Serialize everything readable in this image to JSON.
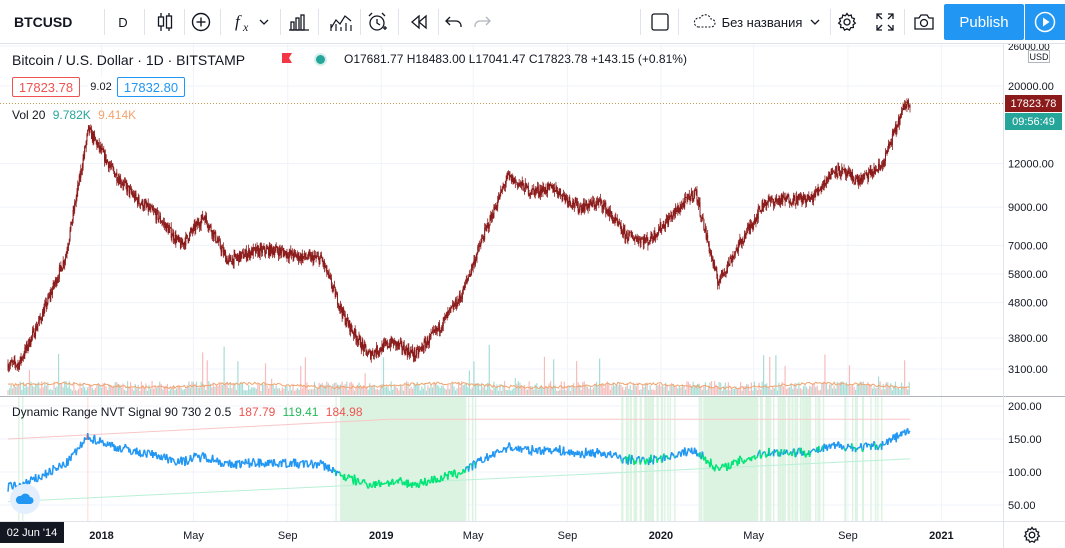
{
  "toolbar": {
    "symbol": "BTCUSD",
    "interval": "D",
    "chart_name": "Без названия",
    "publish_label": "Publish"
  },
  "legend": {
    "title": "Bitcoin / U.S. Dollar · 1D · BITSTAMP",
    "ohlc": "O17681.77 H18483.00 L17041.47 C17823.78 +143.15 (+0.81%)",
    "bid": "17823.78",
    "spread": "9.02",
    "ask": "17832.80",
    "volume": {
      "label": "Vol 20",
      "value1": "9.782K",
      "value2": "9.414K"
    },
    "nvt": {
      "label": "Dynamic Range NVT Signal 90 730 2 0.5",
      "value1": "187.79",
      "value2": "119.41",
      "value3": "184.98"
    }
  },
  "price_axis": {
    "currency": "USD",
    "current_price": "17823.78",
    "countdown": "09:56:49",
    "ticks": [
      "26000.00",
      "20000.00",
      "17823.78",
      "12000.00",
      "9000.00",
      "7000.00",
      "5800.00",
      "4800.00",
      "3800.00",
      "3100.00"
    ]
  },
  "nvt_axis": {
    "ticks": [
      "200.00",
      "150.00",
      "100.00",
      "50.00"
    ]
  },
  "time_axis": {
    "cursor_date": "02 Jun '14",
    "labels": [
      "2018",
      "May",
      "Sep",
      "2019",
      "May",
      "Sep",
      "2020",
      "May",
      "Sep",
      "2021"
    ]
  },
  "colors": {
    "up": "#26a69a",
    "down": "#ef5350",
    "candle": "#8b1a1a",
    "accent": "#2196f3",
    "nvt_blue": "#2196f3",
    "nvt_red": "#ef5350",
    "nvt_green": "#00e676",
    "volume_ma": "#f0a46e"
  },
  "icons": [
    "candle-style-icon",
    "add-indicator-icon",
    "fx-icon",
    "bar-chart-icon",
    "alert-icon",
    "replay-icon",
    "undo-icon",
    "redo-icon",
    "fullscreen-icon",
    "camera-icon",
    "settings-icon",
    "play-icon"
  ],
  "chart_data": {
    "type": "line",
    "y_scale": "log",
    "x": [
      "2017-09",
      "2017-10",
      "2017-11",
      "2017-12",
      "2018-01",
      "2018-02",
      "2018-03",
      "2018-04",
      "2018-05",
      "2018-06",
      "2018-07",
      "2018-08",
      "2018-09",
      "2018-10",
      "2018-11",
      "2018-12",
      "2019-01",
      "2019-02",
      "2019-03",
      "2019-04",
      "2019-05",
      "2019-06",
      "2019-07",
      "2019-08",
      "2019-09",
      "2019-10",
      "2019-11",
      "2019-12",
      "2020-01",
      "2020-02",
      "2020-03",
      "2020-04",
      "2020-05",
      "2020-06",
      "2020-07",
      "2020-08",
      "2020-09",
      "2020-10",
      "2020-11"
    ],
    "series": [
      {
        "values": [
          3200,
          4400,
          6500,
          15000,
          11500,
          9500,
          8500,
          7000,
          8500,
          6300,
          6700,
          6800,
          6500,
          6400,
          4300,
          3400,
          3700,
          3400,
          4000,
          5000,
          7500,
          11000,
          10000,
          10200,
          9000,
          9300,
          7500,
          7200,
          8500,
          10000,
          5500,
          7200,
          9300,
          9500,
          9500,
          11600,
          10700,
          11800,
          17800
        ]
      }
    ],
    "ylim": [
      2500,
      28000
    ]
  }
}
